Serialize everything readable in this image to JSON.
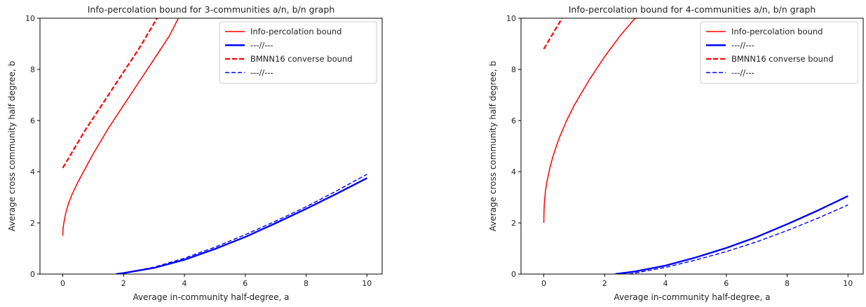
{
  "chart_data": [
    {
      "type": "line",
      "title": "Info-percolation bound for 3-communities  a/n, b/n graph",
      "xlabel": "Average in-community half-degree, a",
      "ylabel": "Average cross community half degree, b",
      "xlim": [
        -0.75,
        10.5
      ],
      "ylim": [
        0,
        10
      ],
      "xticks": [
        0,
        2,
        4,
        6,
        8,
        10
      ],
      "yticks": [
        0,
        2,
        4,
        6,
        8,
        10
      ],
      "xtick_labels": [
        "0",
        "2",
        "4",
        "6",
        "8",
        "10"
      ],
      "ytick_labels": [
        "0",
        "2",
        "4",
        "6",
        "8",
        "10"
      ],
      "grid": false,
      "legend_position": "top-right",
      "legend": [
        {
          "label": "Info-percolation bound",
          "color": "#ff0000",
          "style": "solid",
          "weight": "thin"
        },
        {
          "label": "---//---",
          "color": "#0000ff",
          "style": "solid",
          "weight": "thick"
        },
        {
          "label": "BMNN16 converse bound",
          "color": "#ff0000",
          "style": "dashed",
          "weight": "thick"
        },
        {
          "label": "---//---",
          "color": "#0000ff",
          "style": "dashed",
          "weight": "thin"
        }
      ],
      "series": [
        {
          "name": "Info-percolation bound",
          "color": "#ff0000",
          "style": "solid",
          "x": [
            0,
            0.01,
            0.05,
            0.1,
            0.2,
            0.3,
            0.5,
            0.75,
            1.0,
            1.5,
            2.0,
            2.5,
            3.0,
            3.5,
            3.8
          ],
          "y": [
            1.5,
            1.8,
            2.1,
            2.4,
            2.8,
            3.1,
            3.6,
            4.15,
            4.7,
            5.7,
            6.6,
            7.5,
            8.4,
            9.3,
            10
          ]
        },
        {
          "name": "---//---",
          "color": "#0000ff",
          "style": "solid",
          "x": [
            1.75,
            2,
            3,
            4,
            5,
            6,
            7,
            8,
            9,
            10
          ],
          "y": [
            0,
            0.04,
            0.24,
            0.56,
            0.98,
            1.45,
            1.99,
            2.55,
            3.14,
            3.75
          ]
        },
        {
          "name": "BMNN16 converse bound",
          "color": "#ff0000",
          "style": "dashed",
          "x": [
            0,
            0.25,
            0.5,
            0.75,
            1.0,
            1.5,
            2.0,
            2.5,
            3.1
          ],
          "y": [
            4.15,
            4.65,
            5.15,
            5.65,
            6.1,
            7.0,
            7.9,
            8.8,
            10
          ]
        },
        {
          "name": "---//---",
          "color": "#0000ff",
          "style": "dashed",
          "x": [
            1.85,
            2,
            3,
            4,
            5,
            6,
            7,
            8,
            9,
            10
          ],
          "y": [
            0,
            0.04,
            0.27,
            0.62,
            1.05,
            1.54,
            2.07,
            2.63,
            3.25,
            3.9
          ]
        }
      ]
    },
    {
      "type": "line",
      "title": "Info-percolation bound for 4-communities  a/n, b/n graph",
      "xlabel": "Average in-community half-degree, a",
      "ylabel": "Average cross community half degree, b",
      "xlim": [
        -0.75,
        10.5
      ],
      "ylim": [
        0,
        10
      ],
      "xticks": [
        0,
        2,
        4,
        6,
        8,
        10
      ],
      "yticks": [
        0,
        2,
        4,
        6,
        8,
        10
      ],
      "xtick_labels": [
        "0",
        "2",
        "4",
        "6",
        "8",
        "10"
      ],
      "ytick_labels": [
        "0",
        "2",
        "4",
        "6",
        "8",
        "10"
      ],
      "grid": false,
      "legend_position": "top-right",
      "legend": [
        {
          "label": "Info-percolation bound",
          "color": "#ff0000",
          "style": "solid",
          "weight": "thin"
        },
        {
          "label": "---//---",
          "color": "#0000ff",
          "style": "solid",
          "weight": "thick"
        },
        {
          "label": "BMNN16 converse bound",
          "color": "#ff0000",
          "style": "dashed",
          "weight": "thick"
        },
        {
          "label": "---//---",
          "color": "#0000ff",
          "style": "dashed",
          "weight": "thin"
        }
      ],
      "series": [
        {
          "name": "Info-percolation bound",
          "color": "#ff0000",
          "style": "solid",
          "x": [
            0,
            0.005,
            0.02,
            0.05,
            0.1,
            0.2,
            0.3,
            0.5,
            0.75,
            1.0,
            1.5,
            2.0,
            2.5,
            3.0,
            3.1
          ],
          "y": [
            2.0,
            2.4,
            2.8,
            3.2,
            3.6,
            4.15,
            4.6,
            5.3,
            6.0,
            6.6,
            7.6,
            8.5,
            9.3,
            10.0,
            10
          ]
        },
        {
          "name": "---//---",
          "color": "#0000ff",
          "style": "solid",
          "x": [
            2.35,
            3,
            4,
            5,
            6,
            7,
            8,
            9,
            10
          ],
          "y": [
            0,
            0.1,
            0.33,
            0.65,
            1.02,
            1.45,
            1.95,
            2.48,
            3.05
          ]
        },
        {
          "name": "BMNN16 converse bound",
          "color": "#ff0000",
          "style": "dashed",
          "x": [
            0,
            0.1,
            0.2,
            0.3,
            0.4,
            0.5,
            0.6
          ],
          "y": [
            8.8,
            9.0,
            9.2,
            9.4,
            9.6,
            9.8,
            10
          ]
        },
        {
          "name": "---//---",
          "color": "#0000ff",
          "style": "dashed",
          "x": [
            2.8,
            3,
            4,
            5,
            6,
            7,
            8,
            9,
            10
          ],
          "y": [
            0,
            0.04,
            0.26,
            0.55,
            0.88,
            1.26,
            1.7,
            2.18,
            2.7
          ]
        }
      ]
    }
  ]
}
